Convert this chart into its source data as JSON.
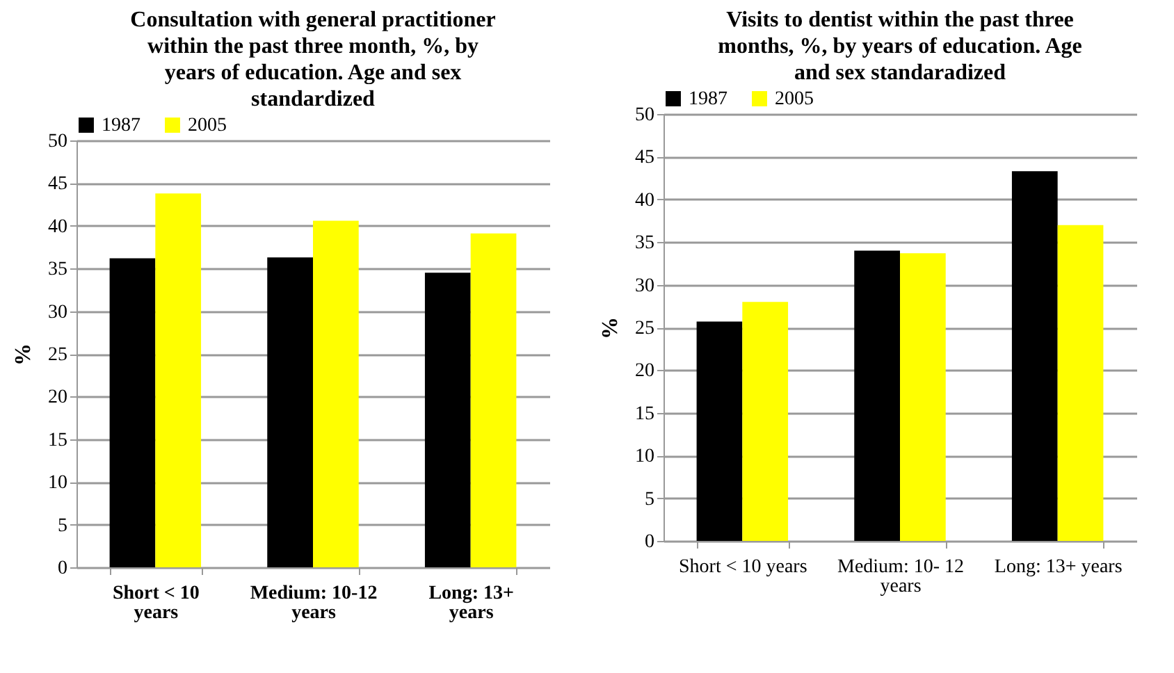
{
  "chart_data": [
    {
      "type": "bar",
      "title": "Consultation with general practitioner within the past three month, %, by years of education. Age and sex standardized",
      "ylabel": "%",
      "categories": [
        "Short < 10 years",
        "Medium: 10-12 years",
        "Long: 13+ years"
      ],
      "series": [
        {
          "name": "1987",
          "color": "#000000",
          "values": [
            36.2,
            36.3,
            34.5
          ]
        },
        {
          "name": "2005",
          "color": "#ffff00",
          "values": [
            43.8,
            40.6,
            39.1
          ]
        }
      ],
      "ylim": [
        0,
        50
      ],
      "yticks": [
        0,
        5,
        10,
        15,
        20,
        25,
        30,
        35,
        40,
        45,
        50
      ],
      "grid": "y",
      "legend": "top"
    },
    {
      "type": "bar",
      "title": "Visits to dentist within the past three months, %, by years of education.  Age and sex standaradized",
      "ylabel": "%",
      "categories": [
        "Short < 10 years",
        "Medium: 10- 12 years",
        "Long: 13+ years"
      ],
      "series": [
        {
          "name": "1987",
          "color": "#000000",
          "values": [
            25.7,
            34.0,
            43.3
          ]
        },
        {
          "name": "2005",
          "color": "#ffff00",
          "values": [
            28.0,
            33.7,
            37.0
          ]
        }
      ],
      "ylim": [
        0,
        50
      ],
      "yticks": [
        0,
        5,
        10,
        15,
        20,
        25,
        30,
        35,
        40,
        45,
        50
      ],
      "grid": "y",
      "legend": "top"
    }
  ]
}
